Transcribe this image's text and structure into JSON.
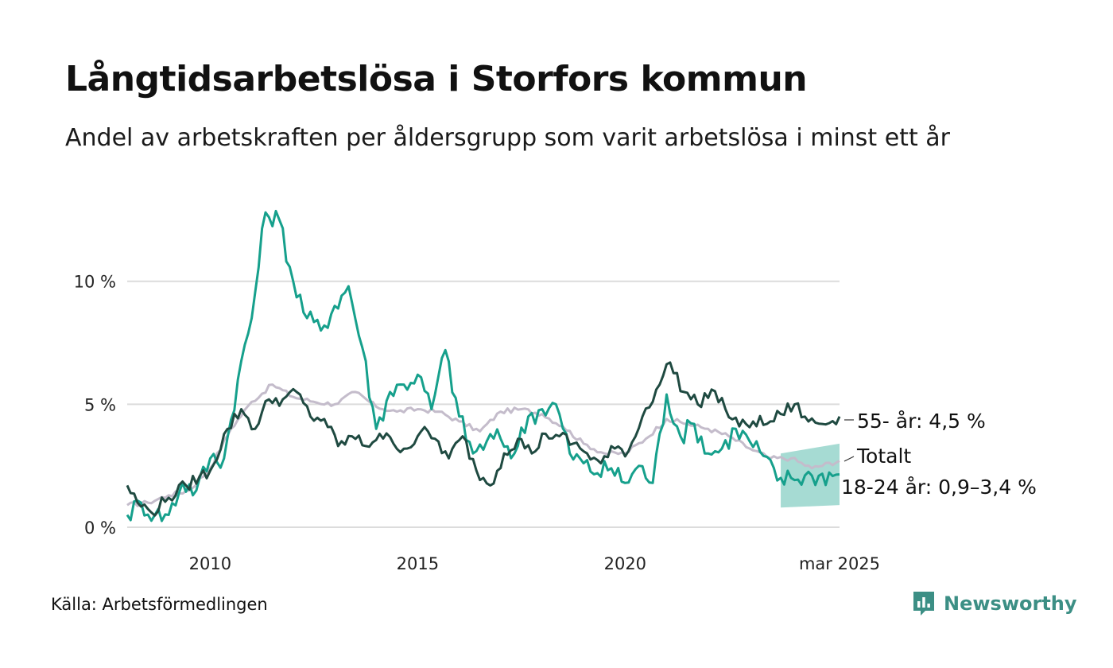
{
  "title": "Långtidsarbetslösa i Storfors kommun",
  "subtitle": "Andel av arbetskraften per åldersgrupp som varit arbetslösa i minst ett år",
  "source": "Källa: Arbetsförmedlingen",
  "brand": {
    "name": "Newsworthy",
    "icon": "newsworthy-logo-icon",
    "color": "#3c8f85"
  },
  "chart_data": {
    "type": "line",
    "x_range": [
      "2008-01",
      "2025-03"
    ],
    "ylim": [
      0,
      14
    ],
    "y_ticks": [
      {
        "value": 0,
        "label": "0 %"
      },
      {
        "value": 5,
        "label": "5 %"
      },
      {
        "value": 10,
        "label": "10 %"
      }
    ],
    "x_ticks": [
      {
        "value": "2010-01",
        "label": "2010"
      },
      {
        "value": "2015-01",
        "label": "2015"
      },
      {
        "value": "2020-01",
        "label": "2020"
      },
      {
        "value": "2025-03",
        "label": "mar 2025"
      }
    ],
    "grid": "horizontal",
    "series": [
      {
        "name": "Totalt",
        "label": "Totalt",
        "color": "#c4bccb",
        "points": [
          [
            "2008-01",
            0.9
          ],
          [
            "2008-07",
            1.0
          ],
          [
            "2009-01",
            1.3
          ],
          [
            "2009-07",
            1.5
          ],
          [
            "2010-01",
            2.4
          ],
          [
            "2010-07",
            4.0
          ],
          [
            "2011-01",
            5.1
          ],
          [
            "2011-07",
            5.8
          ],
          [
            "2012-01",
            5.3
          ],
          [
            "2012-07",
            5.1
          ],
          [
            "2013-01",
            5.0
          ],
          [
            "2013-07",
            5.5
          ],
          [
            "2014-01",
            4.9
          ],
          [
            "2014-07",
            4.7
          ],
          [
            "2015-01",
            4.8
          ],
          [
            "2015-07",
            4.7
          ],
          [
            "2016-01",
            4.3
          ],
          [
            "2016-07",
            3.9
          ],
          [
            "2017-01",
            4.7
          ],
          [
            "2017-07",
            4.8
          ],
          [
            "2018-01",
            4.6
          ],
          [
            "2018-07",
            4.1
          ],
          [
            "2019-01",
            3.4
          ],
          [
            "2019-07",
            3.0
          ],
          [
            "2020-01",
            3.0
          ],
          [
            "2020-07",
            3.6
          ],
          [
            "2021-01",
            4.4
          ],
          [
            "2021-07",
            4.2
          ],
          [
            "2022-01",
            4.0
          ],
          [
            "2022-07",
            3.7
          ],
          [
            "2023-01",
            3.2
          ],
          [
            "2023-07",
            2.8
          ],
          [
            "2024-01",
            2.8
          ],
          [
            "2024-07",
            2.4
          ],
          [
            "2025-03",
            2.7
          ]
        ]
      },
      {
        "name": "18-24 år",
        "label": "18-24 år: 0,9–3,4 %",
        "color": "#16a08c",
        "points": [
          [
            "2008-01",
            0.5
          ],
          [
            "2008-05",
            1.0
          ],
          [
            "2008-09",
            0.5
          ],
          [
            "2009-01",
            0.5
          ],
          [
            "2009-05",
            1.8
          ],
          [
            "2009-09",
            1.5
          ],
          [
            "2010-01",
            2.8
          ],
          [
            "2010-05",
            2.8
          ],
          [
            "2010-09",
            6.0
          ],
          [
            "2011-01",
            8.5
          ],
          [
            "2011-05",
            12.8
          ],
          [
            "2011-09",
            12.5
          ],
          [
            "2012-01",
            10.0
          ],
          [
            "2012-05",
            8.5
          ],
          [
            "2012-09",
            8.0
          ],
          [
            "2013-01",
            9.0
          ],
          [
            "2013-05",
            9.8
          ],
          [
            "2013-09",
            7.3
          ],
          [
            "2014-01",
            4.0
          ],
          [
            "2014-05",
            5.5
          ],
          [
            "2014-09",
            5.8
          ],
          [
            "2015-01",
            6.2
          ],
          [
            "2015-05",
            4.8
          ],
          [
            "2015-09",
            7.2
          ],
          [
            "2016-01",
            4.5
          ],
          [
            "2016-05",
            3.0
          ],
          [
            "2016-09",
            3.5
          ],
          [
            "2017-01",
            3.6
          ],
          [
            "2017-05",
            3.0
          ],
          [
            "2017-09",
            4.5
          ],
          [
            "2018-01",
            4.8
          ],
          [
            "2018-05",
            5.0
          ],
          [
            "2018-09",
            3.0
          ],
          [
            "2019-01",
            2.6
          ],
          [
            "2019-05",
            2.2
          ],
          [
            "2019-09",
            2.4
          ],
          [
            "2020-01",
            1.8
          ],
          [
            "2020-05",
            2.5
          ],
          [
            "2020-09",
            1.8
          ],
          [
            "2021-01",
            5.4
          ],
          [
            "2021-05",
            3.7
          ],
          [
            "2021-09",
            4.2
          ],
          [
            "2022-01",
            3.0
          ],
          [
            "2022-05",
            3.2
          ],
          [
            "2022-09",
            4.0
          ],
          [
            "2023-01",
            3.5
          ],
          [
            "2023-05",
            2.9
          ],
          [
            "2023-09",
            1.9
          ],
          [
            "2024-01",
            2.0
          ],
          [
            "2024-07",
            2.1
          ],
          [
            "2025-03",
            2.15
          ]
        ],
        "uncertainty": {
          "from": "2023-10",
          "low": [
            0.8,
            0.9
          ],
          "high": [
            3.0,
            3.4
          ]
        }
      },
      {
        "name": "55- år",
        "label": "55- år: 4,5 %",
        "color": "#1f4a41",
        "points": [
          [
            "2008-01",
            1.7
          ],
          [
            "2008-04",
            1.0
          ],
          [
            "2008-08",
            0.6
          ],
          [
            "2009-01",
            1.2
          ],
          [
            "2009-06",
            1.7
          ],
          [
            "2010-01",
            2.3
          ],
          [
            "2010-06",
            4.0
          ],
          [
            "2010-10",
            4.8
          ],
          [
            "2011-02",
            4.0
          ],
          [
            "2011-06",
            5.2
          ],
          [
            "2011-10",
            5.2
          ],
          [
            "2012-02",
            5.5
          ],
          [
            "2012-06",
            4.5
          ],
          [
            "2012-10",
            4.4
          ],
          [
            "2013-02",
            3.3
          ],
          [
            "2013-06",
            3.7
          ],
          [
            "2013-10",
            3.3
          ],
          [
            "2014-02",
            3.8
          ],
          [
            "2014-06",
            3.4
          ],
          [
            "2014-10",
            3.2
          ],
          [
            "2015-02",
            3.9
          ],
          [
            "2015-06",
            3.6
          ],
          [
            "2015-10",
            2.8
          ],
          [
            "2016-02",
            3.7
          ],
          [
            "2016-06",
            2.3
          ],
          [
            "2016-10",
            1.7
          ],
          [
            "2017-02",
            3.0
          ],
          [
            "2017-06",
            3.6
          ],
          [
            "2017-10",
            3.0
          ],
          [
            "2018-02",
            3.8
          ],
          [
            "2018-06",
            3.7
          ],
          [
            "2018-10",
            3.4
          ],
          [
            "2019-02",
            3.0
          ],
          [
            "2019-06",
            2.6
          ],
          [
            "2019-10",
            3.2
          ],
          [
            "2020-02",
            3.1
          ],
          [
            "2020-06",
            4.5
          ],
          [
            "2020-10",
            5.6
          ],
          [
            "2021-02",
            6.7
          ],
          [
            "2021-06",
            5.5
          ],
          [
            "2021-10",
            5.0
          ],
          [
            "2022-02",
            5.6
          ],
          [
            "2022-06",
            4.8
          ],
          [
            "2022-10",
            4.1
          ],
          [
            "2023-02",
            4.3
          ],
          [
            "2023-06",
            4.2
          ],
          [
            "2023-10",
            4.6
          ],
          [
            "2024-02",
            5.0
          ],
          [
            "2024-06",
            4.3
          ],
          [
            "2024-10",
            4.2
          ],
          [
            "2025-03",
            4.5
          ]
        ]
      }
    ]
  }
}
